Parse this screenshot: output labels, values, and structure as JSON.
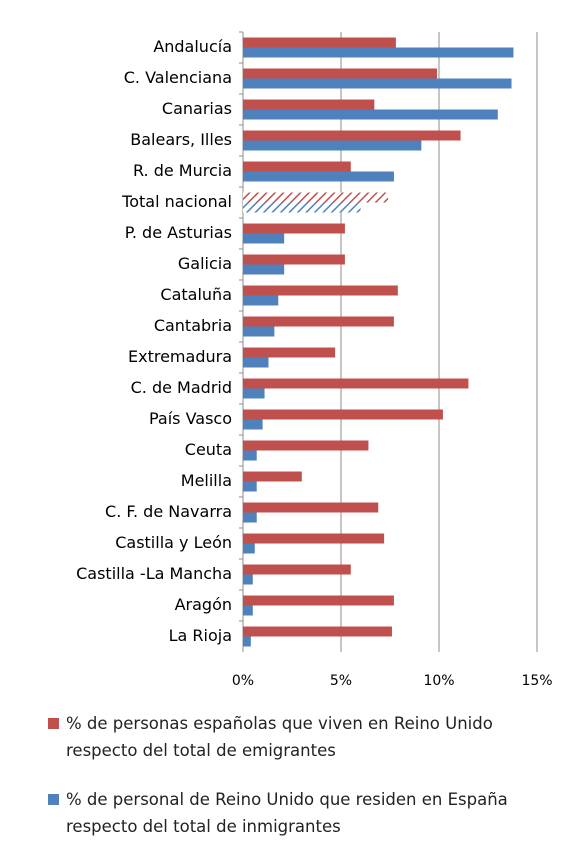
{
  "chart_data": {
    "type": "hbar",
    "categories": [
      "Andalucía",
      "C. Valenciana",
      "Canarias",
      "Balears, Illes",
      "R. de Murcia",
      "Total nacional",
      "P. de Asturias",
      "Galicia",
      "Cataluña",
      "Cantabria",
      "Extremadura",
      "C. de Madrid",
      "País Vasco",
      "Ceuta",
      "Melilla",
      "C. F. de Navarra",
      "Castilla y León",
      "Castilla -La Mancha",
      "Aragón",
      "La Rioja"
    ],
    "series": [
      {
        "name": "% de personas españolas que viven en Reino Unido respecto del total de emigrantes",
        "color": "#c0504d",
        "values": [
          7.8,
          9.9,
          6.7,
          11.1,
          5.5,
          7.4,
          5.2,
          5.2,
          7.9,
          7.7,
          4.7,
          11.5,
          10.2,
          6.4,
          3.0,
          6.9,
          7.2,
          5.5,
          7.7,
          7.6
        ]
      },
      {
        "name": "% de personal de Reino Unido que residen en España respecto del total de inmigrantes",
        "color": "#4f81bd",
        "values": [
          13.8,
          13.7,
          13.0,
          9.1,
          7.7,
          6.0,
          2.1,
          2.1,
          1.8,
          1.6,
          1.3,
          1.1,
          1.0,
          0.7,
          0.7,
          0.7,
          0.6,
          0.5,
          0.5,
          0.4
        ]
      }
    ],
    "hatched_index": 5,
    "xlim": [
      0,
      15
    ],
    "xticks": [
      {
        "value": 0,
        "label": "0%"
      },
      {
        "value": 5,
        "label": "5%"
      },
      {
        "value": 10,
        "label": "10%"
      },
      {
        "value": 15,
        "label": "15%"
      }
    ],
    "grid": true
  }
}
